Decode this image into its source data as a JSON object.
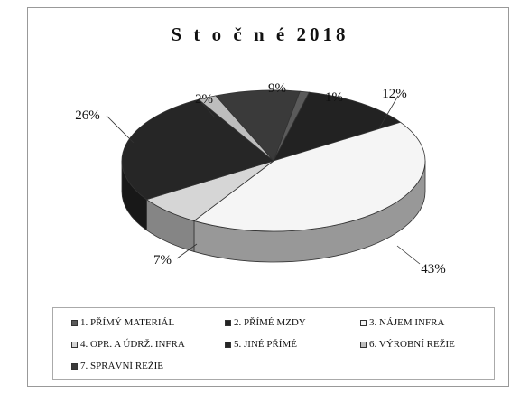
{
  "chart_data": {
    "type": "pie",
    "title": "S t o č n é  2018",
    "slices": [
      {
        "label": "1. PŘÍMÝ MATERIÁL",
        "value": 1,
        "pct_label": "1%",
        "color": "#5a5a5a"
      },
      {
        "label": "2. PŘÍMÉ MZDY",
        "value": 12,
        "pct_label": "12%",
        "color": "#222222"
      },
      {
        "label": "3. NÁJEM INFRA",
        "value": 43,
        "pct_label": "43%",
        "color": "#f5f5f5"
      },
      {
        "label": "4. OPR. A ÚDRŽ. INFRA",
        "value": 7,
        "pct_label": "7%",
        "color": "#d6d6d6"
      },
      {
        "label": "5. JINÉ PŘÍMÉ",
        "value": 26,
        "pct_label": "26%",
        "color": "#262626"
      },
      {
        "label": "6. VÝROBNÍ REŽIE",
        "value": 2,
        "pct_label": "2%",
        "color": "#bdbdbd"
      },
      {
        "label": "7. SPRÁVNÍ REŽIE",
        "value": 9,
        "pct_label": "9%",
        "color": "#3a3a3a"
      }
    ],
    "legend_position": "bottom"
  }
}
